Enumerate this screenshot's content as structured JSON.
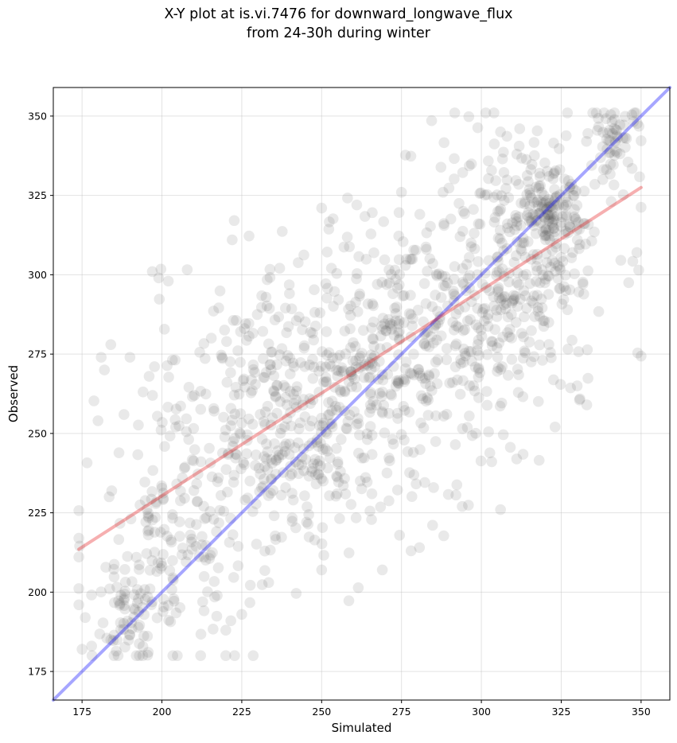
{
  "chart_data": {
    "type": "scatter",
    "title_line1": "X-Y plot at is.vi.7476 for downward_longwave_flux",
    "title_line2": "from 24-30h during winter",
    "xlabel": "Simulated",
    "ylabel": "Observed",
    "xlim": [
      166,
      359
    ],
    "ylim": [
      166,
      359
    ],
    "xticks": [
      175,
      200,
      225,
      250,
      275,
      300,
      325,
      350
    ],
    "yticks": [
      175,
      200,
      225,
      250,
      275,
      300,
      325,
      350
    ],
    "grid": true,
    "point_color": "#555555",
    "lines": [
      {
        "kind": "identity",
        "color": "#0000ff",
        "x": [
          166,
          359
        ],
        "y": [
          166,
          359
        ]
      },
      {
        "kind": "regression",
        "color": "#e41a1c",
        "x": [
          174,
          350
        ],
        "y": [
          213.5,
          327.5
        ]
      }
    ],
    "clusters": [
      {
        "cx": 205,
        "cy": 215,
        "sx": 12,
        "sy": 18,
        "n": 160
      },
      {
        "cx": 240,
        "cy": 255,
        "sx": 20,
        "sy": 22,
        "n": 420
      },
      {
        "cx": 275,
        "cy": 280,
        "sx": 20,
        "sy": 22,
        "n": 340
      },
      {
        "cx": 310,
        "cy": 300,
        "sx": 15,
        "sy": 22,
        "n": 300
      },
      {
        "cx": 320,
        "cy": 318,
        "sx": 6,
        "sy": 7,
        "n": 140
      },
      {
        "cx": 342,
        "cy": 343,
        "sx": 4,
        "sy": 6,
        "n": 60
      },
      {
        "cx": 190,
        "cy": 193,
        "sx": 5,
        "sy": 8,
        "n": 60
      }
    ],
    "points_extra": [
      [
        174,
        217
      ],
      [
        175,
        182
      ],
      [
        176,
        192
      ],
      [
        180,
        254
      ],
      [
        181,
        274
      ],
      [
        182,
        270
      ],
      [
        184,
        278
      ],
      [
        190,
        274
      ],
      [
        196,
        268
      ],
      [
        197,
        301
      ],
      [
        199,
        299
      ],
      [
        202,
        298
      ],
      [
        222,
        311
      ],
      [
        250,
        321
      ],
      [
        261,
        322
      ],
      [
        275,
        326
      ],
      [
        288,
        326
      ],
      [
        306,
        345
      ],
      [
        312,
        346
      ],
      [
        330,
        265
      ],
      [
        333,
        259
      ],
      [
        306,
        226
      ],
      [
        294,
        227
      ],
      [
        278,
        213
      ],
      [
        269,
        207
      ],
      [
        250,
        207
      ],
      [
        220,
        188
      ],
      [
        225,
        193
      ],
      [
        185,
        180
      ],
      [
        184,
        185
      ],
      [
        178,
        183
      ]
    ]
  }
}
